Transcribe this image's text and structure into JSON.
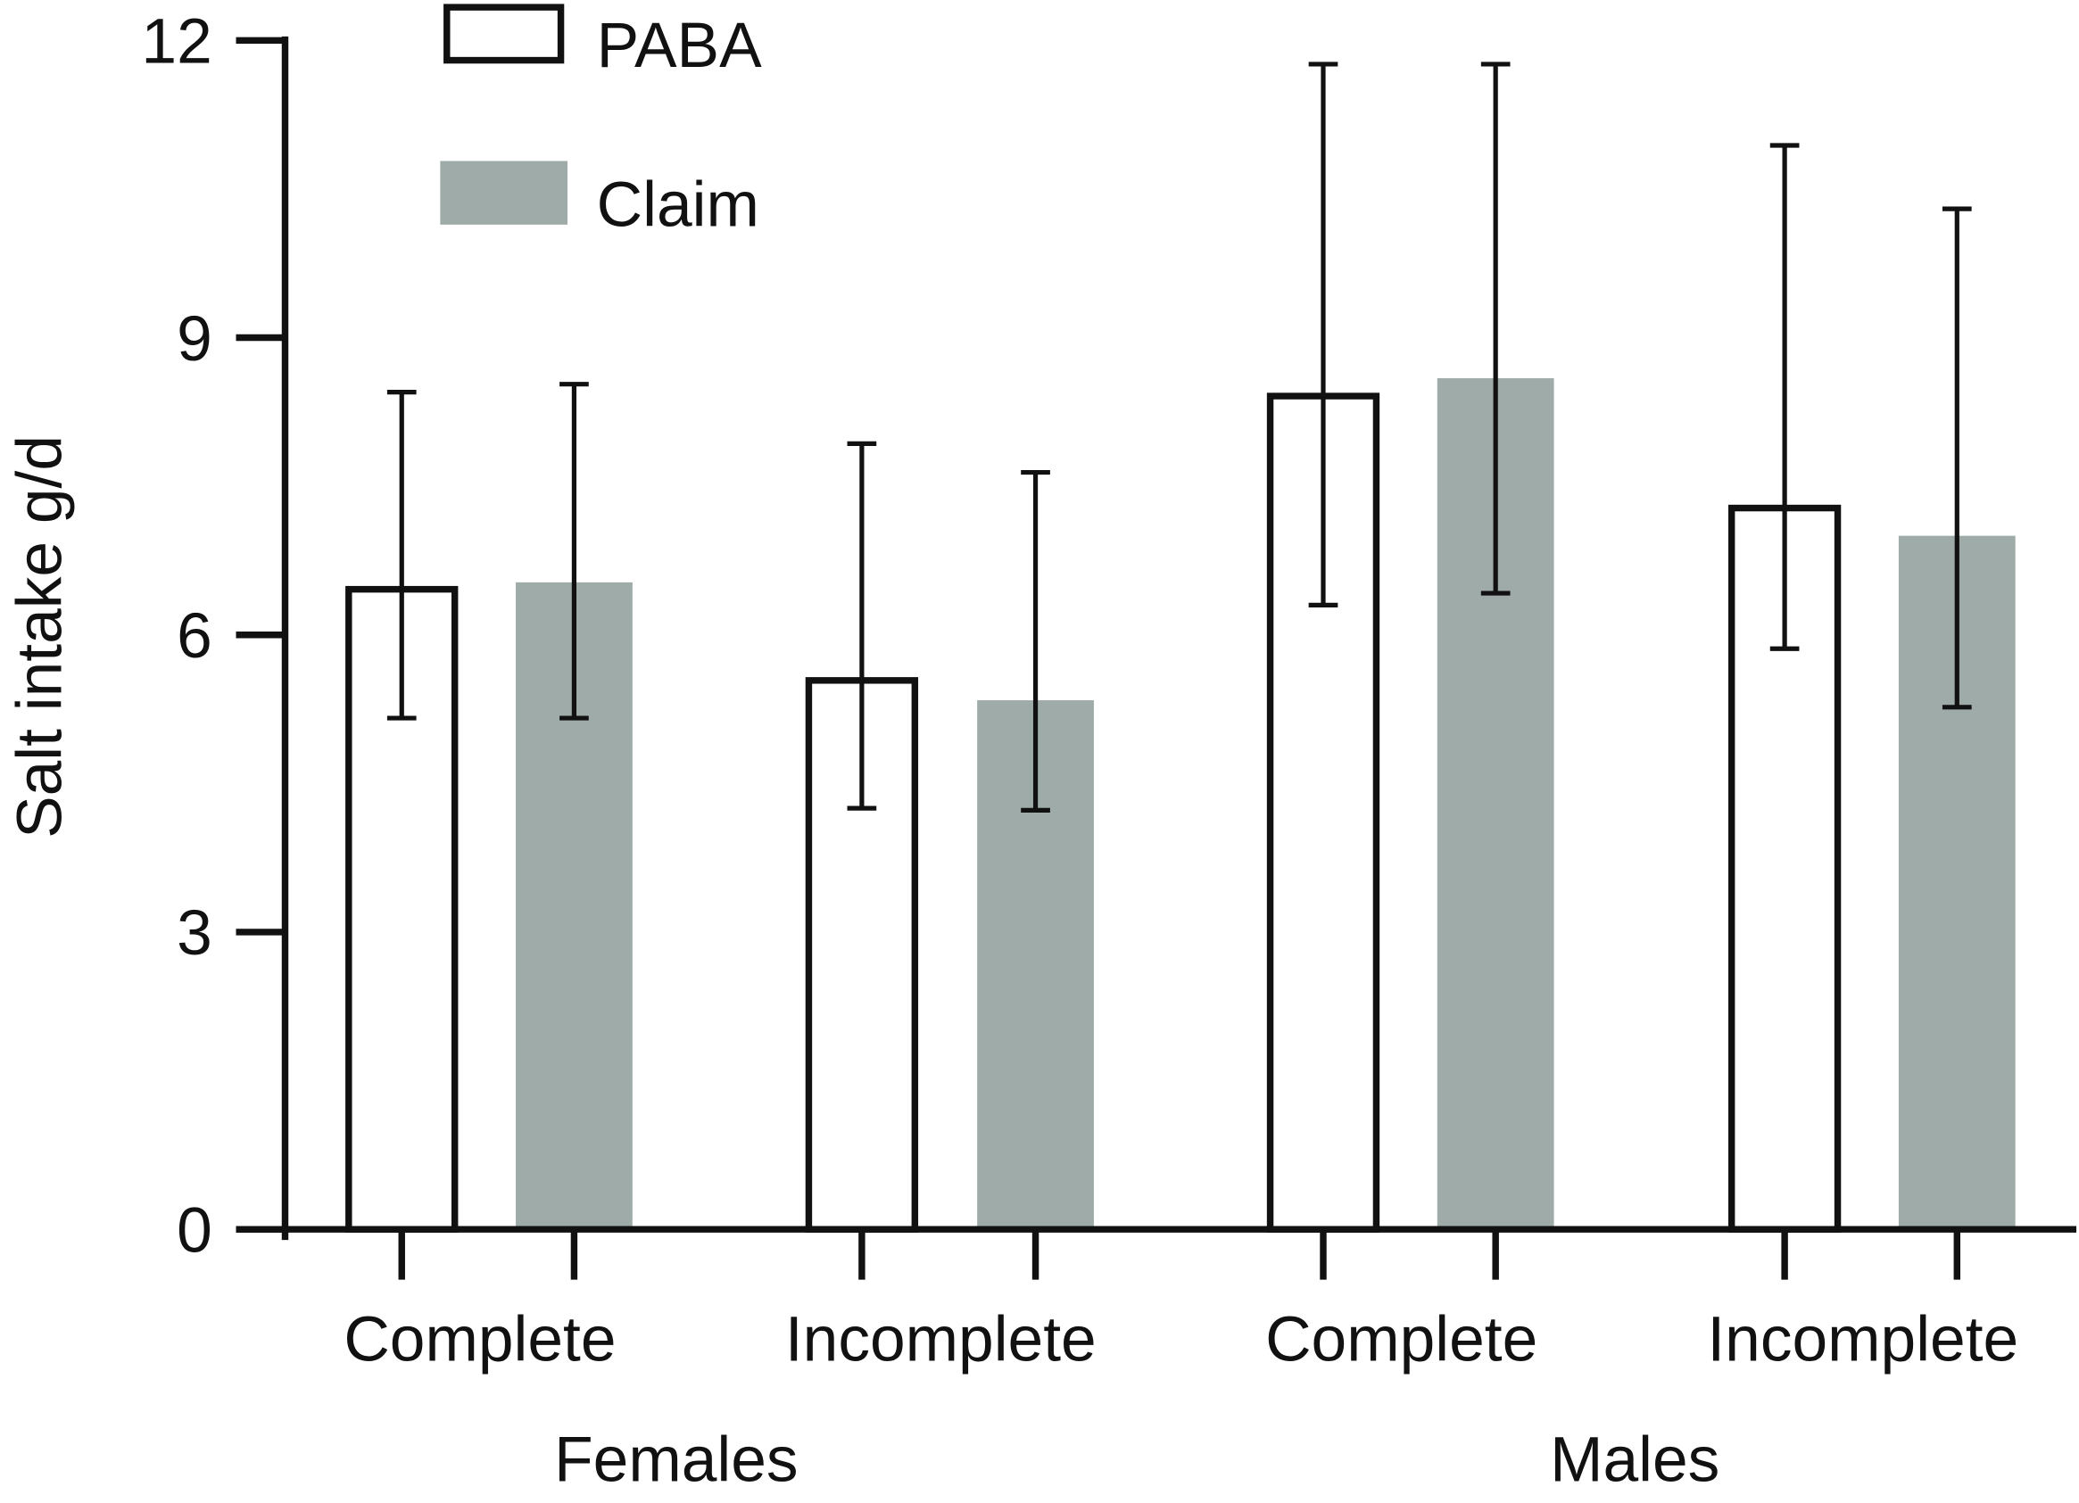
{
  "chart_data": {
    "type": "bar",
    "title": "",
    "xlabel": "",
    "ylabel": "Salt intake g/d",
    "ylim": [
      0,
      12
    ],
    "yticks": [
      0,
      3,
      6,
      9,
      12
    ],
    "groups": [
      "Females",
      "Males"
    ],
    "categories": [
      "Complete",
      "Incomplete",
      "Complete",
      "Incomplete"
    ],
    "category_groups": [
      0,
      0,
      1,
      1
    ],
    "legend_position": "top-left",
    "grid": false,
    "series": [
      {
        "name": "PABA",
        "style": "outline",
        "color": "#111111",
        "values": [
          6.46,
          5.54,
          8.41,
          7.28
        ],
        "error_low": [
          5.16,
          4.25,
          6.3,
          5.86
        ],
        "error_high": [
          8.45,
          7.93,
          11.76,
          10.94
        ]
      },
      {
        "name": "Claim",
        "style": "filled",
        "color": "#9eaba8",
        "values": [
          6.53,
          5.34,
          8.59,
          7.0
        ],
        "error_low": [
          5.16,
          4.23,
          6.42,
          5.27
        ],
        "error_high": [
          8.53,
          7.64,
          11.76,
          10.3
        ]
      }
    ]
  }
}
